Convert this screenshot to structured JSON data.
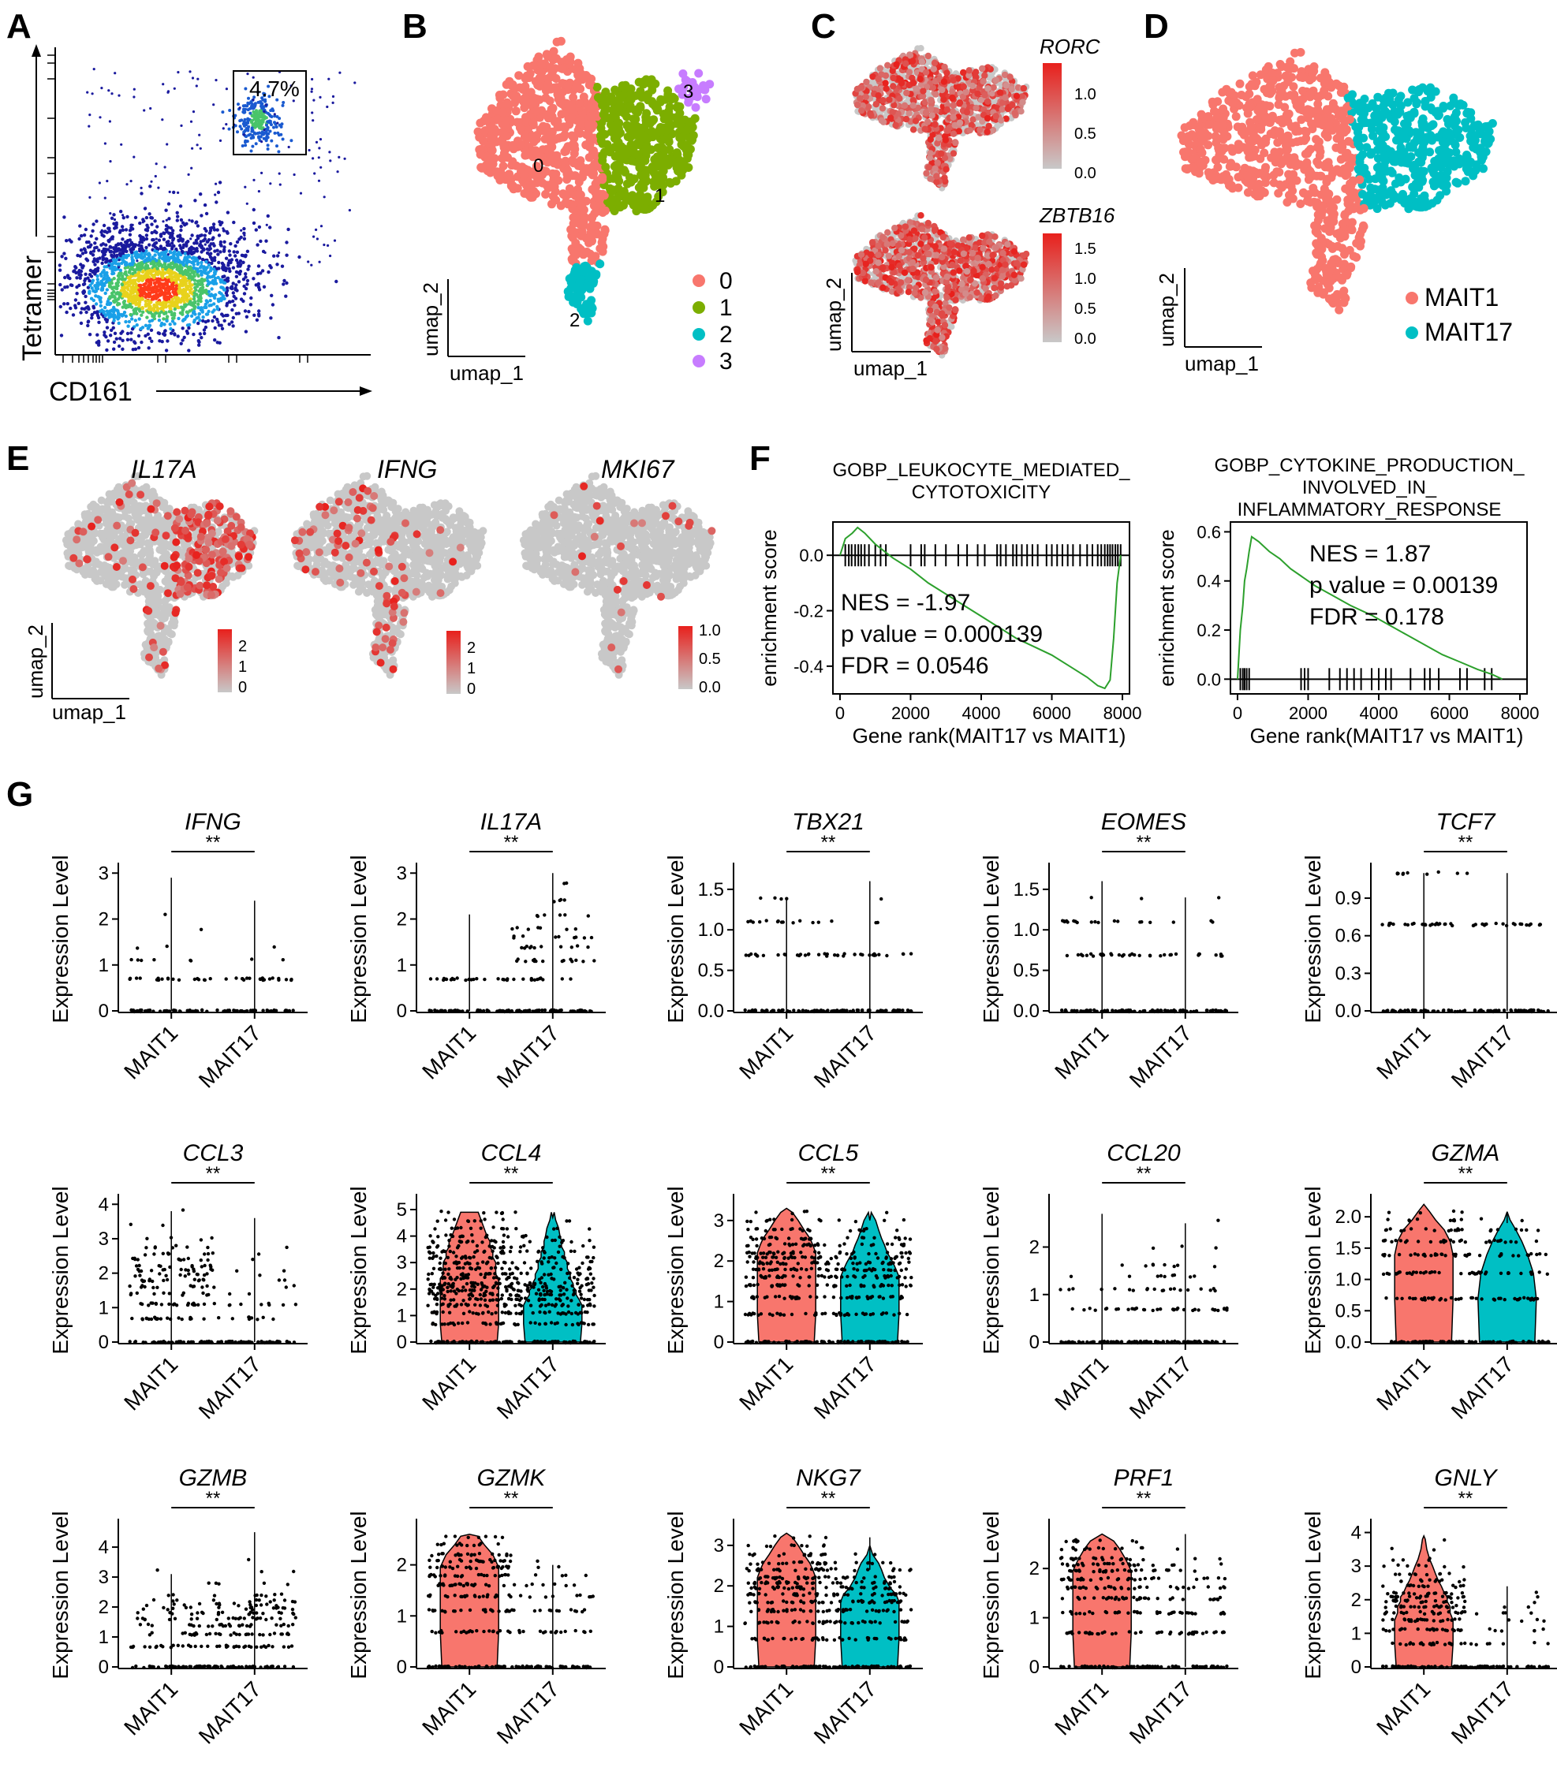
{
  "panels": [
    "A",
    "B",
    "C",
    "D",
    "E",
    "F",
    "G"
  ],
  "colors": {
    "mait1": "#F8766D",
    "mait17": "#00BFC4",
    "cluster0": "#F8766D",
    "cluster1": "#7CAE00",
    "cluster2": "#00BFC4",
    "cluster3": "#C77CFF",
    "gsea_line": "#2ca02c",
    "umap_grey": "#c8c8c8",
    "feat_red": "#e8201c"
  },
  "flow": {
    "y_label": "Tetramer",
    "x_label": "CD161",
    "gate_percent": "4.7%"
  },
  "umap": {
    "x_label": "umap_1",
    "y_label": "umap_2"
  },
  "clusters": {
    "labels": [
      "0",
      "1",
      "2",
      "3"
    ]
  },
  "feature_c": [
    {
      "gene": "RORC",
      "ticks": [
        "1.0",
        "0.5",
        "0.0"
      ]
    },
    {
      "gene": "ZBTB16",
      "ticks": [
        "1.5",
        "1.0",
        "0.5",
        "0.0"
      ]
    }
  ],
  "groups": {
    "legend": [
      "MAIT1",
      "MAIT17"
    ]
  },
  "feature_e": [
    {
      "gene": "IL17A",
      "ticks": [
        "2",
        "1",
        "0"
      ]
    },
    {
      "gene": "IFNG",
      "ticks": [
        "2",
        "1",
        "0"
      ]
    },
    {
      "gene": "MKI67",
      "ticks": [
        "1.0",
        "0.5",
        "0.0"
      ]
    }
  ],
  "chart_data": [
    {
      "type": "line",
      "title": "GOBP_LEUKOCYTE_MEDIATED_ CYTOTOXICITY",
      "title_lines": [
        "GOBP_LEUKOCYTE_MEDIATED_",
        "CYTOTOXICITY"
      ],
      "xlabel": "Gene rank(MAIT17 vs MAIT1)",
      "ylabel": "enrichment score",
      "xlim": [
        -200,
        8200
      ],
      "ylim": [
        -0.5,
        0.12
      ],
      "x_ticks": [
        "0",
        "2000",
        "4000",
        "6000",
        "8000"
      ],
      "x_tick_values": [
        0,
        2000,
        4000,
        6000,
        8000
      ],
      "y_ticks": [
        "0.0",
        "-0.2",
        "-0.4"
      ],
      "y_tick_values": [
        0.0,
        -0.2,
        -0.4
      ],
      "stats": [
        "NES = -1.97",
        "p value = 0.000139",
        "FDR = 0.0546"
      ],
      "x": [
        0,
        150,
        350,
        500,
        700,
        1000,
        1500,
        2000,
        2500,
        3000,
        3500,
        4000,
        4500,
        5000,
        5500,
        6000,
        6500,
        7000,
        7300,
        7500,
        7650,
        7750,
        7850,
        7950
      ],
      "y": [
        0.0,
        0.06,
        0.08,
        0.1,
        0.08,
        0.04,
        -0.01,
        -0.05,
        -0.1,
        -0.14,
        -0.18,
        -0.22,
        -0.26,
        -0.3,
        -0.33,
        -0.36,
        -0.4,
        -0.44,
        -0.47,
        -0.48,
        -0.45,
        -0.3,
        -0.1,
        0.0
      ],
      "hits": [
        150,
        250,
        330,
        430,
        520,
        600,
        700,
        820,
        1000,
        1150,
        1300,
        2000,
        2300,
        2400,
        2700,
        3000,
        3350,
        3600,
        3900,
        4100,
        4450,
        4550,
        4700,
        4900,
        5000,
        5150,
        5300,
        5450,
        5600,
        5850,
        6000,
        6150,
        6300,
        6450,
        6600,
        6800,
        7000,
        7150,
        7300,
        7400,
        7500,
        7580,
        7650,
        7720,
        7800,
        7870,
        7950
      ]
    },
    {
      "type": "line",
      "title": "GOBP_CYTOKINE_PRODUCTION_ INVOLVED_IN_ INFLAMMATORY_RESPONSE",
      "title_lines": [
        "GOBP_CYTOKINE_PRODUCTION_",
        "INVOLVED_IN_",
        "INFLAMMATORY_RESPONSE"
      ],
      "xlabel": "Gene rank(MAIT17 vs MAIT1)",
      "ylabel": "enrichment score",
      "xlim": [
        -200,
        8200
      ],
      "ylim": [
        -0.06,
        0.64
      ],
      "x_ticks": [
        "0",
        "2000",
        "4000",
        "6000",
        "8000"
      ],
      "x_tick_values": [
        0,
        2000,
        4000,
        6000,
        8000
      ],
      "y_ticks": [
        "0.0",
        "0.2",
        "0.4",
        "0.6"
      ],
      "y_tick_values": [
        0.0,
        0.2,
        0.4,
        0.6
      ],
      "stats": [
        "NES = 1.87",
        "p value = 0.00139",
        "FDR = 0.178"
      ],
      "x": [
        0,
        80,
        150,
        200,
        260,
        330,
        400,
        600,
        900,
        1200,
        1500,
        1800,
        2200,
        2700,
        3200,
        3800,
        4300,
        4800,
        5300,
        5800,
        6300,
        6800,
        7200,
        7500
      ],
      "y": [
        0.0,
        0.2,
        0.3,
        0.4,
        0.45,
        0.52,
        0.58,
        0.56,
        0.52,
        0.49,
        0.45,
        0.42,
        0.38,
        0.34,
        0.3,
        0.26,
        0.22,
        0.18,
        0.14,
        0.1,
        0.07,
        0.04,
        0.02,
        0.0
      ],
      "hits": [
        80,
        150,
        200,
        260,
        330,
        1800,
        1900,
        2000,
        2600,
        2900,
        3100,
        3300,
        3500,
        3800,
        4000,
        4200,
        4350,
        4900,
        5300,
        5450,
        5700,
        6300,
        6500,
        7000,
        7200
      ]
    }
  ],
  "violin": {
    "y_label": "Expression Level",
    "groups": [
      "MAIT1",
      "MAIT17"
    ],
    "sig": "**",
    "plots": [
      {
        "gene": "IFNG",
        "ymax": 3.0,
        "ticks": [
          0,
          1,
          2,
          3
        ],
        "tick_labels": [
          "0",
          "1",
          "2",
          "3"
        ],
        "levels": [
          0.69,
          1.1,
          1.39,
          1.79,
          2.08,
          2.4,
          2.77
        ],
        "v1": [
          0.9,
          0.25,
          0.08,
          0.04,
          0.03,
          0.02,
          0.01
        ],
        "v2": [
          0.97,
          0.1,
          0.03,
          0.02,
          0.01,
          0.02,
          0.0
        ],
        "max1": 2.9,
        "max2": 2.4,
        "violin1": false,
        "violin2": false
      },
      {
        "gene": "IL17A",
        "ymax": 3.0,
        "ticks": [
          0,
          1,
          2,
          3
        ],
        "tick_labels": [
          "0",
          "1",
          "2",
          "3"
        ],
        "levels": [
          0.69,
          1.1,
          1.39,
          1.61,
          1.79,
          2.08,
          2.4,
          2.77
        ],
        "v1": [
          0.99,
          0.0,
          0.0,
          0.0,
          0.0,
          0.01,
          0.0,
          0.0
        ],
        "v2": [
          0.6,
          0.7,
          0.5,
          0.4,
          0.3,
          0.25,
          0.2,
          0.1
        ],
        "max1": 2.1,
        "max2": 3.0,
        "violin1": false,
        "violin2": false
      },
      {
        "gene": "TBX21",
        "ymax": 1.7,
        "ticks": [
          0,
          0.5,
          1.0,
          1.5
        ],
        "tick_labels": [
          "0.0",
          "0.5",
          "1.0",
          "1.5"
        ],
        "levels": [
          0.69,
          1.1,
          1.39,
          1.61
        ],
        "v1": [
          0.9,
          0.6,
          0.2,
          0.0
        ],
        "v2": [
          0.85,
          0.15,
          0.03,
          0.02
        ],
        "max1": 1.4,
        "max2": 1.6,
        "violin1": false,
        "violin2": false
      },
      {
        "gene": "EOMES",
        "ymax": 1.7,
        "ticks": [
          0,
          0.5,
          1.0,
          1.5
        ],
        "tick_labels": [
          "0.0",
          "0.5",
          "1.0",
          "1.5"
        ],
        "levels": [
          0.69,
          1.1,
          1.39,
          1.61
        ],
        "v1": [
          0.95,
          0.7,
          0.1,
          0.02
        ],
        "v2": [
          0.7,
          0.2,
          0.05,
          0.0
        ],
        "max1": 1.6,
        "max2": 1.4,
        "violin1": false,
        "violin2": false
      },
      {
        "gene": "TCF7",
        "ymax": 1.1,
        "ticks": [
          0,
          0.3,
          0.6,
          0.9
        ],
        "tick_labels": [
          "0.0",
          "0.3",
          "0.6",
          "0.9"
        ],
        "levels": [
          0.69,
          1.1
        ],
        "v1": [
          1.0,
          0.4
        ],
        "v2": [
          0.9,
          0.05
        ],
        "max1": 1.1,
        "max2": 1.1,
        "violin1": false,
        "violin2": false
      },
      {
        "gene": "CCL3",
        "ymax": 4.0,
        "ticks": [
          0,
          1,
          2,
          3,
          4
        ],
        "tick_labels": [
          "0",
          "1",
          "2",
          "3",
          "4"
        ],
        "levels": [
          0.69,
          1.1,
          1.39,
          1.61,
          1.79,
          1.95,
          2.08,
          2.2,
          2.4,
          2.56,
          2.77,
          3.0,
          3.4,
          3.8
        ],
        "v1": [
          0.95,
          0.9,
          0.5,
          0.5,
          0.6,
          0.5,
          0.6,
          0.5,
          0.5,
          0.4,
          0.3,
          0.2,
          0.1,
          0.05
        ],
        "v2": [
          0.4,
          0.4,
          0.1,
          0.15,
          0.1,
          0.05,
          0.1,
          0.0,
          0.05,
          0.05,
          0.05,
          0.0,
          0.02,
          0.0
        ],
        "max1": 3.8,
        "max2": 3.6,
        "violin1": false,
        "violin2": false
      },
      {
        "gene": "CCL4",
        "ymax": 5.2,
        "ticks": [
          0,
          1,
          2,
          3,
          4,
          5
        ],
        "tick_labels": [
          "0",
          "1",
          "2",
          "3",
          "4",
          "5"
        ],
        "levels": [
          0.69,
          1.1,
          1.39,
          1.61,
          1.79,
          1.95,
          2.08,
          2.2,
          2.4,
          2.56,
          2.77,
          3.0,
          3.2,
          3.4,
          3.6,
          3.8,
          4.0,
          4.3,
          4.6,
          4.9
        ],
        "v1": [
          1,
          1,
          1,
          1,
          1,
          1,
          1,
          1,
          1,
          0.9,
          0.9,
          0.9,
          0.8,
          0.8,
          0.7,
          0.7,
          0.6,
          0.5,
          0.4,
          0.3
        ],
        "v2": [
          1,
          1,
          1,
          0.9,
          0.8,
          0.8,
          0.7,
          0.7,
          0.6,
          0.6,
          0.5,
          0.5,
          0.4,
          0.4,
          0.3,
          0.3,
          0.25,
          0.2,
          0.1,
          0.05
        ],
        "max1": 4.9,
        "max2": 4.7,
        "violin1": true,
        "violin2": true
      },
      {
        "gene": "CCL5",
        "ymax": 3.4,
        "ticks": [
          0,
          1,
          2,
          3
        ],
        "tick_labels": [
          "0",
          "1",
          "2",
          "3"
        ],
        "levels": [
          0.69,
          1.1,
          1.39,
          1.61,
          1.79,
          1.95,
          2.08,
          2.2,
          2.4,
          2.56,
          2.77,
          3.0,
          3.2
        ],
        "v1": [
          1,
          1,
          1,
          1,
          1,
          1,
          1,
          1,
          0.9,
          0.8,
          0.6,
          0.4,
          0.2
        ],
        "v2": [
          1,
          1,
          1,
          1,
          0.9,
          0.8,
          0.7,
          0.6,
          0.5,
          0.4,
          0.3,
          0.2,
          0.05
        ],
        "max1": 3.3,
        "max2": 3.0,
        "violin1": true,
        "violin2": true
      },
      {
        "gene": "CCL20",
        "ymax": 2.9,
        "ticks": [
          0,
          1,
          2
        ],
        "tick_labels": [
          "0",
          "1",
          "2"
        ],
        "levels": [
          0.69,
          1.1,
          1.39,
          1.61,
          2.0,
          2.56
        ],
        "v1": [
          0.6,
          0.3,
          0.1,
          0.05,
          0.02,
          0.02
        ],
        "v2": [
          1,
          0.6,
          0.3,
          0.3,
          0.15,
          0.05
        ],
        "max1": 2.7,
        "max2": 2.5,
        "violin1": false,
        "violin2": false
      },
      {
        "gene": "GZMA",
        "ymax": 2.2,
        "ticks": [
          0,
          0.5,
          1.0,
          1.5,
          2.0
        ],
        "tick_labels": [
          "0.0",
          "0.5",
          "1.0",
          "1.5",
          "2.0"
        ],
        "levels": [
          0.69,
          1.1,
          1.39,
          1.61,
          1.79,
          1.95,
          2.08
        ],
        "v1": [
          1,
          1,
          1,
          0.9,
          0.7,
          0.4,
          0.2
        ],
        "v2": [
          1,
          0.9,
          0.7,
          0.5,
          0.3,
          0.1,
          0.0
        ],
        "max1": 2.2,
        "max2": 1.9,
        "violin1": true,
        "violin2": true
      },
      {
        "gene": "GZMB",
        "ymax": 4.6,
        "ticks": [
          0,
          1,
          2,
          3,
          4
        ],
        "tick_labels": [
          "0",
          "1",
          "2",
          "3",
          "4"
        ],
        "levels": [
          0.69,
          1.1,
          1.39,
          1.61,
          1.79,
          1.95,
          2.08,
          2.2,
          2.4,
          2.77,
          3.2,
          3.6,
          4.3
        ],
        "v1": [
          0.8,
          0.6,
          0.4,
          0.35,
          0.3,
          0.25,
          0.2,
          0.15,
          0.1,
          0.05,
          0.05,
          0.0,
          0.0
        ],
        "v2": [
          1,
          0.9,
          0.8,
          0.7,
          0.6,
          0.5,
          0.45,
          0.4,
          0.3,
          0.2,
          0.1,
          0.05,
          0.02
        ],
        "max1": 3.1,
        "max2": 4.5,
        "violin1": false,
        "violin2": false
      },
      {
        "gene": "GZMK",
        "ymax": 2.7,
        "ticks": [
          0,
          1,
          2
        ],
        "tick_labels": [
          "0",
          "1",
          "2"
        ],
        "levels": [
          0.69,
          1.1,
          1.39,
          1.61,
          1.79,
          1.95,
          2.08,
          2.2,
          2.4,
          2.56
        ],
        "v1": [
          1,
          1,
          1,
          1,
          1,
          1,
          0.9,
          0.8,
          0.5,
          0.3
        ],
        "v2": [
          0.7,
          0.6,
          0.4,
          0.3,
          0.2,
          0.1,
          0.05,
          0.0,
          0.0,
          0.0
        ],
        "max1": 2.6,
        "max2": 2.0,
        "violin1": true,
        "violin2": false
      },
      {
        "gene": "NKG7",
        "ymax": 3.4,
        "ticks": [
          0,
          1,
          2,
          3
        ],
        "tick_labels": [
          "0",
          "1",
          "2",
          "3"
        ],
        "levels": [
          0.69,
          1.1,
          1.39,
          1.61,
          1.79,
          1.95,
          2.08,
          2.2,
          2.4,
          2.56,
          2.77,
          3.0,
          3.2
        ],
        "v1": [
          1,
          1,
          1,
          1,
          1,
          1,
          1,
          1,
          0.9,
          0.8,
          0.6,
          0.4,
          0.2
        ],
        "v2": [
          1,
          1,
          1,
          1,
          0.9,
          0.7,
          0.6,
          0.5,
          0.4,
          0.3,
          0.1,
          0.0,
          0.0
        ],
        "max1": 3.3,
        "max2": 2.4,
        "violin1": true,
        "violin2": true
      },
      {
        "gene": "PRF1",
        "ymax": 2.8,
        "ticks": [
          0,
          1,
          2
        ],
        "tick_labels": [
          "0",
          "1",
          "2"
        ],
        "levels": [
          0.69,
          1.1,
          1.39,
          1.61,
          1.79,
          1.95,
          2.08,
          2.2,
          2.4,
          2.56
        ],
        "v1": [
          1,
          1,
          1,
          1,
          1,
          1,
          0.9,
          0.8,
          0.6,
          0.4
        ],
        "v2": [
          1,
          0.8,
          0.6,
          0.5,
          0.4,
          0.3,
          0.2,
          0.1,
          0.05,
          0.02
        ],
        "max1": 2.7,
        "max2": 2.7,
        "violin1": true,
        "violin2": false
      },
      {
        "gene": "GNLY",
        "ymax": 4.1,
        "ticks": [
          0,
          1,
          2,
          3,
          4
        ],
        "tick_labels": [
          "0",
          "1",
          "2",
          "3",
          "4"
        ],
        "levels": [
          0.69,
          1.1,
          1.39,
          1.61,
          1.79,
          1.95,
          2.08,
          2.2,
          2.4,
          2.56,
          2.77,
          3.0,
          3.2,
          3.5,
          3.8
        ],
        "v1": [
          1,
          1,
          1,
          0.9,
          0.9,
          0.8,
          0.8,
          0.7,
          0.6,
          0.5,
          0.4,
          0.3,
          0.2,
          0.1,
          0.05
        ],
        "v2": [
          0.3,
          0.25,
          0.2,
          0.2,
          0.1,
          0.05,
          0.05,
          0.05,
          0.02,
          0.0,
          0.0,
          0.0,
          0.0,
          0.0,
          0.0
        ],
        "max1": 3.9,
        "max2": 2.4,
        "violin1": true,
        "violin2": false
      }
    ]
  }
}
